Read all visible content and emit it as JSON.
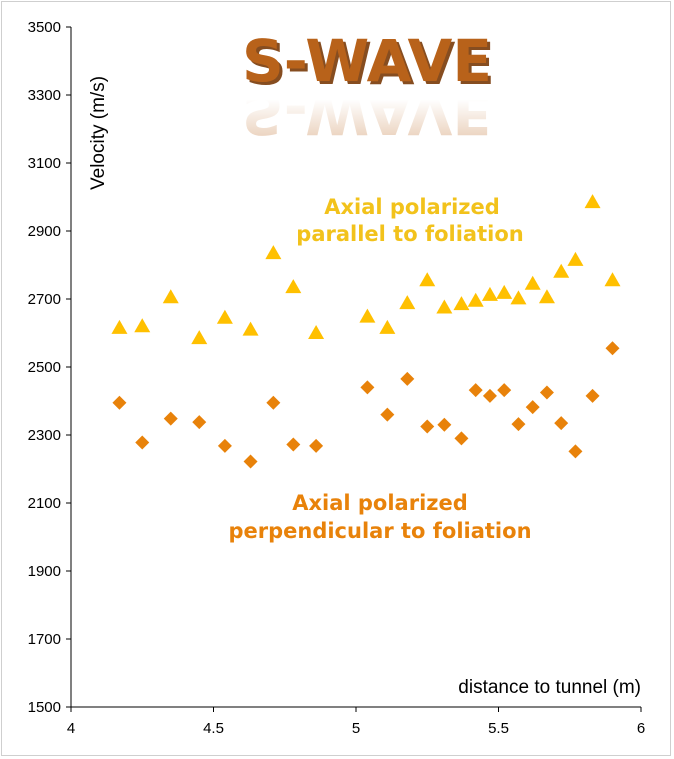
{
  "chart_data": {
    "type": "scatter",
    "title": "S-WAVE",
    "xlabel": "distance to tunnel (m)",
    "ylabel": "Velocity (m/s)",
    "xlim": [
      4,
      6
    ],
    "ylim": [
      1500,
      3500
    ],
    "x_ticks": [
      "4",
      "4.5",
      "5",
      "5.5",
      "6"
    ],
    "y_ticks": [
      "1500",
      "1700",
      "1900",
      "2100",
      "2300",
      "2500",
      "2700",
      "2900",
      "3100",
      "3300",
      "3500"
    ],
    "grid": false,
    "series": [
      {
        "name": "Axial polarized parallel to foliation",
        "marker": "triangle",
        "color": "#FFC000",
        "points": [
          [
            4.17,
            2615
          ],
          [
            4.25,
            2620
          ],
          [
            4.35,
            2705
          ],
          [
            4.45,
            2585
          ],
          [
            4.54,
            2645
          ],
          [
            4.63,
            2610
          ],
          [
            4.71,
            2835
          ],
          [
            4.78,
            2735
          ],
          [
            4.86,
            2600
          ],
          [
            5.04,
            2648
          ],
          [
            5.11,
            2615
          ],
          [
            5.18,
            2688
          ],
          [
            5.25,
            2755
          ],
          [
            5.31,
            2675
          ],
          [
            5.37,
            2685
          ],
          [
            5.42,
            2695
          ],
          [
            5.47,
            2712
          ],
          [
            5.52,
            2718
          ],
          [
            5.57,
            2702
          ],
          [
            5.62,
            2745
          ],
          [
            5.67,
            2705
          ],
          [
            5.72,
            2780
          ],
          [
            5.77,
            2815
          ],
          [
            5.83,
            2985
          ],
          [
            5.9,
            2755
          ]
        ]
      },
      {
        "name": "Axial polarized perpendicular to foliation",
        "marker": "diamond",
        "color": "#E8820A",
        "points": [
          [
            4.17,
            2395
          ],
          [
            4.25,
            2278
          ],
          [
            4.35,
            2348
          ],
          [
            4.45,
            2338
          ],
          [
            4.54,
            2268
          ],
          [
            4.63,
            2222
          ],
          [
            4.71,
            2395
          ],
          [
            4.78,
            2272
          ],
          [
            4.86,
            2268
          ],
          [
            5.04,
            2440
          ],
          [
            5.11,
            2360
          ],
          [
            5.18,
            2465
          ],
          [
            5.25,
            2325
          ],
          [
            5.31,
            2330
          ],
          [
            5.37,
            2290
          ],
          [
            5.42,
            2432
          ],
          [
            5.47,
            2415
          ],
          [
            5.52,
            2432
          ],
          [
            5.57,
            2332
          ],
          [
            5.62,
            2382
          ],
          [
            5.67,
            2425
          ],
          [
            5.72,
            2335
          ],
          [
            5.77,
            2252
          ],
          [
            5.83,
            2415
          ],
          [
            5.9,
            2555
          ]
        ]
      }
    ]
  },
  "colors": {
    "title_fill": "#B8621A",
    "title_shadow": "#7A3A08",
    "annotation_parallel": "#F2C21B",
    "annotation_perpendicular": "#E8820A",
    "axis_line": "#000000"
  }
}
